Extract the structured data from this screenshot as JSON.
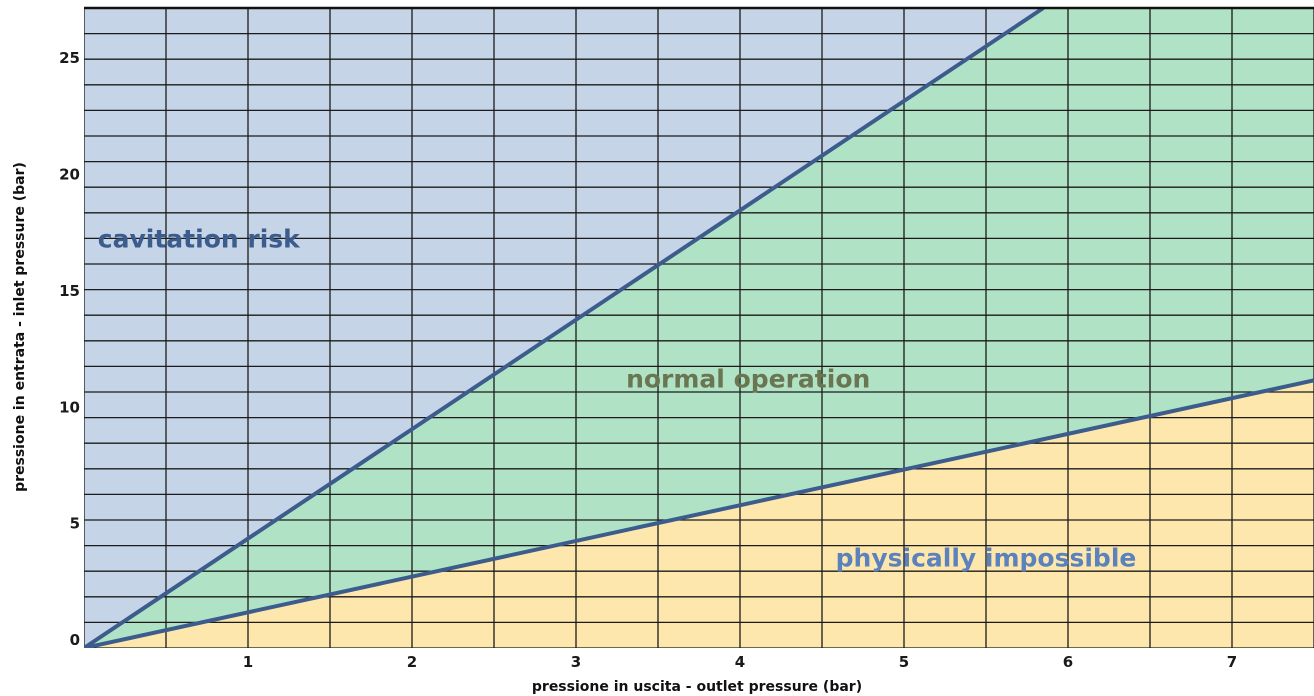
{
  "chart_data": {
    "type": "area",
    "title": "",
    "xlabel": "pressione in uscita - outlet pressure (bar)",
    "ylabel": "pressione in entrata - inlet pressure (bar)",
    "xlim": [
      0,
      7.5
    ],
    "ylim": [
      0,
      27.5
    ],
    "x_ticks": [
      1,
      2,
      3,
      4,
      5,
      6,
      7
    ],
    "y_ticks": [
      0,
      5,
      10,
      15,
      20,
      25
    ],
    "grid": true,
    "grid_x_step": 0.5,
    "grid_y_step": 1.1,
    "boundaries": [
      {
        "points": [
          [
            0,
            0
          ],
          [
            5.85,
            27.5
          ]
        ]
      },
      {
        "points": [
          [
            0,
            0
          ],
          [
            7.5,
            11.5
          ]
        ]
      }
    ],
    "regions": [
      {
        "label": "cavitation risk",
        "color": "#c6d4e8",
        "text_color": "#3b5c8c",
        "label_at": [
          0.7,
          17.2
        ]
      },
      {
        "label": "normal operation",
        "color": "#b0e3c5",
        "text_color": "#6a7552",
        "label_at": [
          4.05,
          11.2
        ]
      },
      {
        "label": "physically impossible",
        "color": "#fde7ac",
        "text_color": "#5b82bd",
        "label_at": [
          5.5,
          3.5
        ]
      }
    ]
  }
}
